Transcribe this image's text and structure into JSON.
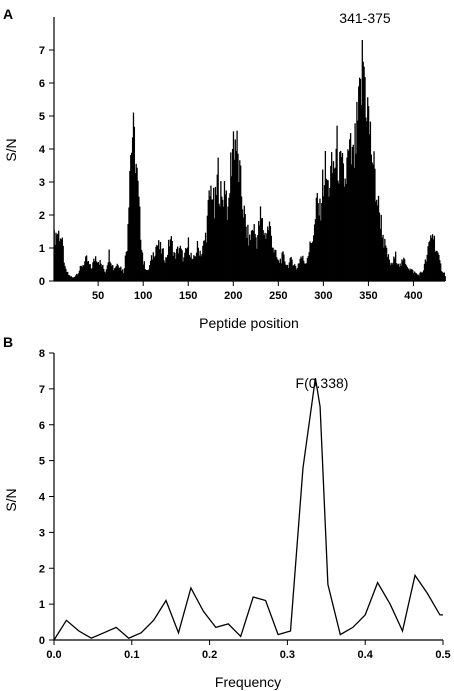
{
  "chart_data": [
    {
      "type": "bar",
      "panel_label": "A",
      "xlabel": "Peptide position",
      "ylabel": "S/N",
      "xlim": [
        1,
        435
      ],
      "ylim": [
        0,
        8
      ],
      "xticks": [
        50,
        100,
        150,
        200,
        250,
        300,
        350,
        400
      ],
      "yticks": [
        0,
        1,
        2,
        3,
        4,
        5,
        6,
        7
      ],
      "annotation": "341-375",
      "annotation_x": 355,
      "grid": false,
      "profile": [
        [
          1,
          1.4
        ],
        [
          4,
          1.6
        ],
        [
          8,
          1.5
        ],
        [
          11,
          1.0
        ],
        [
          13,
          0.4
        ],
        [
          17,
          0.2
        ],
        [
          22,
          0.1
        ],
        [
          28,
          0.3
        ],
        [
          32,
          0.5
        ],
        [
          37,
          0.7
        ],
        [
          42,
          0.4
        ],
        [
          47,
          0.8
        ],
        [
          52,
          0.6
        ],
        [
          58,
          0.3
        ],
        [
          62,
          0.9
        ],
        [
          67,
          0.4
        ],
        [
          72,
          0.6
        ],
        [
          78,
          0.3
        ],
        [
          82,
          1.2
        ],
        [
          85,
          3.8
        ],
        [
          88,
          4.8
        ],
        [
          91,
          4.2
        ],
        [
          94,
          2.9
        ],
        [
          97,
          1.6
        ],
        [
          100,
          0.6
        ],
        [
          105,
          0.3
        ],
        [
          110,
          0.8
        ],
        [
          115,
          1.2
        ],
        [
          120,
          1.0
        ],
        [
          125,
          0.7
        ],
        [
          130,
          1.4
        ],
        [
          135,
          0.8
        ],
        [
          140,
          1.1
        ],
        [
          145,
          0.7
        ],
        [
          150,
          1.2
        ],
        [
          155,
          0.6
        ],
        [
          160,
          1.1
        ],
        [
          165,
          0.9
        ],
        [
          170,
          1.6
        ],
        [
          173,
          2.6
        ],
        [
          176,
          3.1
        ],
        [
          179,
          2.2
        ],
        [
          183,
          3.5
        ],
        [
          187,
          2.5
        ],
        [
          191,
          3.3
        ],
        [
          194,
          2.0
        ],
        [
          197,
          3.7
        ],
        [
          200,
          4.7
        ],
        [
          203,
          4.5
        ],
        [
          206,
          3.6
        ],
        [
          210,
          2.6
        ],
        [
          214,
          1.7
        ],
        [
          218,
          1.3
        ],
        [
          222,
          1.8
        ],
        [
          226,
          1.3
        ],
        [
          230,
          2.1
        ],
        [
          235,
          1.5
        ],
        [
          240,
          1.8
        ],
        [
          245,
          1.0
        ],
        [
          250,
          0.6
        ],
        [
          255,
          0.8
        ],
        [
          260,
          0.5
        ],
        [
          265,
          0.7
        ],
        [
          270,
          0.4
        ],
        [
          275,
          0.8
        ],
        [
          280,
          0.6
        ],
        [
          285,
          1.1
        ],
        [
          290,
          1.7
        ],
        [
          293,
          2.6
        ],
        [
          296,
          2.2
        ],
        [
          299,
          3.1
        ],
        [
          302,
          3.6
        ],
        [
          305,
          3.0
        ],
        [
          308,
          3.4
        ],
        [
          312,
          3.8
        ],
        [
          315,
          4.2
        ],
        [
          318,
          3.6
        ],
        [
          321,
          3.5
        ],
        [
          324,
          3.2
        ],
        [
          327,
          3.9
        ],
        [
          330,
          4.1
        ],
        [
          333,
          3.8
        ],
        [
          336,
          4.5
        ],
        [
          339,
          5.4
        ],
        [
          342,
          6.3
        ],
        [
          344,
          7.3
        ],
        [
          346,
          6.5
        ],
        [
          349,
          5.6
        ],
        [
          352,
          4.6
        ],
        [
          355,
          3.9
        ],
        [
          358,
          3.0
        ],
        [
          361,
          2.4
        ],
        [
          364,
          1.9
        ],
        [
          367,
          1.3
        ],
        [
          370,
          0.9
        ],
        [
          375,
          0.5
        ],
        [
          380,
          0.8
        ],
        [
          385,
          0.5
        ],
        [
          390,
          0.7
        ],
        [
          395,
          0.4
        ],
        [
          400,
          0.3
        ],
        [
          405,
          0.2
        ],
        [
          410,
          0.3
        ],
        [
          415,
          0.8
        ],
        [
          418,
          1.3
        ],
        [
          421,
          1.6
        ],
        [
          424,
          1.2
        ],
        [
          427,
          0.8
        ],
        [
          431,
          0.4
        ],
        [
          435,
          0.2
        ]
      ]
    },
    {
      "type": "line",
      "panel_label": "B",
      "xlabel": "Frequency",
      "ylabel": "S/N",
      "xlim": [
        0.0,
        0.5
      ],
      "ylim": [
        0,
        8
      ],
      "xticks": [
        0.0,
        0.1,
        0.2,
        0.3,
        0.4,
        0.5
      ],
      "xtick_labels": [
        "0.0",
        "0.1",
        "0.2",
        "0.3",
        "0.4",
        "0.5"
      ],
      "yticks": [
        0,
        1,
        2,
        3,
        4,
        5,
        6,
        7,
        8
      ],
      "annotation": "F(0.338)",
      "annotation_x": 0.338,
      "grid": false,
      "x": [
        0.0,
        0.016,
        0.032,
        0.048,
        0.064,
        0.08,
        0.096,
        0.112,
        0.128,
        0.144,
        0.16,
        0.176,
        0.192,
        0.208,
        0.224,
        0.24,
        0.256,
        0.272,
        0.288,
        0.304,
        0.32,
        0.336,
        0.342,
        0.352,
        0.368,
        0.384,
        0.4,
        0.416,
        0.432,
        0.448,
        0.464,
        0.48,
        0.496,
        0.5
      ],
      "y": [
        0.0,
        0.55,
        0.25,
        0.05,
        0.2,
        0.35,
        0.05,
        0.2,
        0.55,
        1.1,
        0.2,
        1.45,
        0.8,
        0.35,
        0.45,
        0.1,
        1.2,
        1.1,
        0.15,
        0.25,
        4.8,
        7.3,
        6.5,
        1.55,
        0.15,
        0.35,
        0.7,
        1.6,
        1.0,
        0.25,
        1.8,
        1.3,
        0.7,
        0.7
      ]
    }
  ]
}
